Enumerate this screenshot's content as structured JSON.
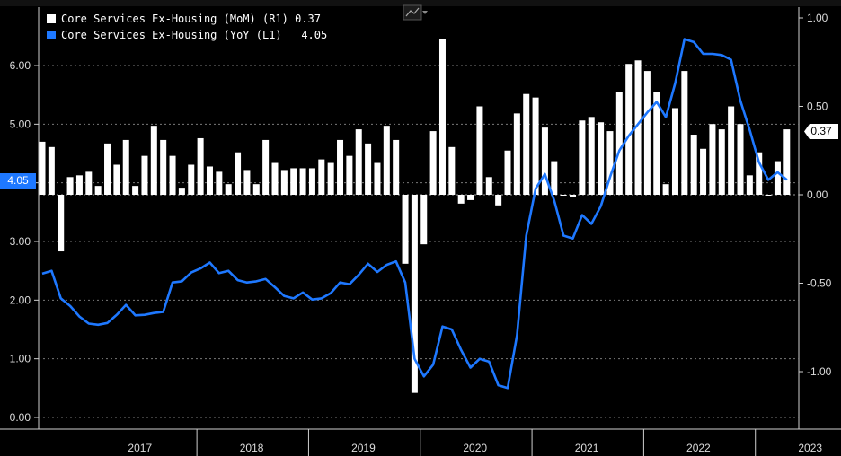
{
  "chart_data": {
    "type": "bar+line",
    "legend": {
      "placement": "top-left",
      "entries": [
        {
          "label": "Core Services Ex-Housing (MoM) (R1)",
          "last": "0.37",
          "color": "#ffffff"
        },
        {
          "label": "Core Services Ex-Housing (YoY (L1)",
          "last": "4.05",
          "color": "#1e78ff"
        }
      ]
    },
    "left_axis": {
      "min": -0.2,
      "max": 6.8,
      "ticks": [
        "0.00",
        "1.00",
        "2.00",
        "3.00",
        "4.00",
        "5.00",
        "6.00"
      ],
      "tick_values": [
        0,
        1,
        2,
        3,
        4,
        5,
        6
      ]
    },
    "right_axis": {
      "min": -1.3,
      "max": 1.03,
      "ticks": [
        "-1.00",
        "-0.50",
        "0.00",
        "0.50",
        "1.00"
      ],
      "tick_values": [
        -1,
        -0.5,
        0,
        0.5,
        1
      ]
    },
    "years": [
      "2017",
      "2018",
      "2019",
      "2020",
      "2021",
      "2022",
      "2023"
    ],
    "x_start": "2016-08",
    "series": [
      {
        "name": "Core Services Ex-Housing (MoM)",
        "axis": "right",
        "kind": "bar",
        "color": "#ffffff",
        "values": [
          0.3,
          0.27,
          -0.32,
          0.1,
          0.11,
          0.13,
          0.05,
          0.29,
          0.17,
          0.31,
          0.05,
          0.22,
          0.39,
          0.31,
          0.22,
          0.04,
          0.17,
          0.32,
          0.16,
          0.13,
          0.06,
          0.24,
          0.14,
          0.06,
          0.31,
          0.18,
          0.14,
          0.15,
          0.15,
          0.15,
          0.2,
          0.18,
          0.31,
          0.22,
          0.37,
          0.29,
          0.18,
          0.39,
          0.31,
          -0.39,
          -1.12,
          -0.28,
          0.36,
          0.88,
          0.27,
          -0.05,
          -0.03,
          0.5,
          0.1,
          -0.06,
          0.25,
          0.46,
          0.57,
          0.55,
          0.38,
          0.19,
          0.0,
          -0.01,
          0.42,
          0.44,
          0.41,
          0.36,
          0.58,
          0.74,
          0.76,
          0.7,
          0.58,
          0.06,
          0.49,
          0.7,
          0.34,
          0.26,
          0.4,
          0.37,
          0.5,
          0.4,
          0.11,
          0.24,
          0.0,
          0.19,
          0.37
        ]
      },
      {
        "name": "Core Services Ex-Housing (YoY",
        "axis": "left",
        "kind": "line",
        "color": "#1e78ff",
        "values": [
          2.45,
          2.5,
          2.03,
          1.9,
          1.72,
          1.6,
          1.58,
          1.61,
          1.75,
          1.92,
          1.74,
          1.75,
          1.78,
          1.8,
          2.3,
          2.32,
          2.47,
          2.54,
          2.64,
          2.46,
          2.5,
          2.34,
          2.3,
          2.32,
          2.36,
          2.22,
          2.07,
          2.03,
          2.13,
          2.01,
          2.03,
          2.12,
          2.3,
          2.27,
          2.43,
          2.62,
          2.48,
          2.6,
          2.66,
          2.3,
          1.0,
          0.7,
          0.9,
          1.55,
          1.5,
          1.15,
          0.85,
          1.0,
          0.95,
          0.55,
          0.5,
          1.4,
          3.1,
          3.9,
          4.15,
          3.7,
          3.1,
          3.05,
          3.45,
          3.3,
          3.6,
          4.1,
          4.55,
          4.8,
          5.0,
          5.2,
          5.38,
          5.12,
          5.7,
          6.45,
          6.4,
          6.2,
          6.2,
          6.18,
          6.1,
          5.4,
          4.9,
          4.35,
          4.05,
          4.18,
          4.05
        ]
      }
    ],
    "value_tags": {
      "left": "4.05",
      "right": "0.37"
    }
  }
}
